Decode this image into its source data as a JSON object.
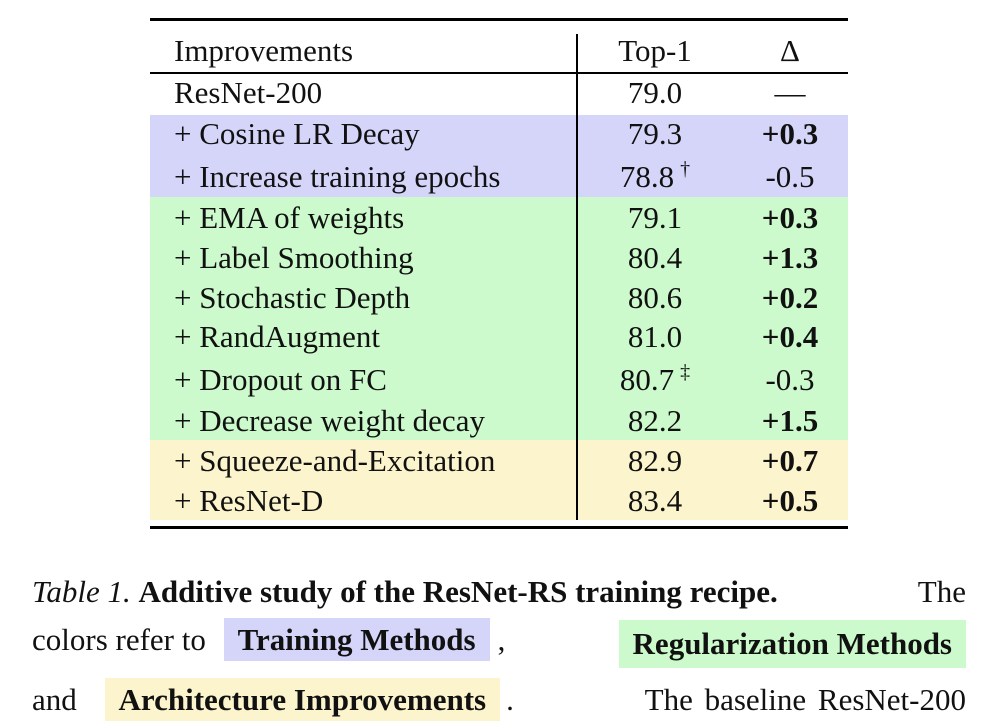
{
  "table": {
    "headers": [
      "Improvements",
      "Top-1",
      "Δ"
    ],
    "baseline": {
      "name": "ResNet-200",
      "top1": "79.0",
      "delta": "—"
    },
    "rows": [
      {
        "name": "+ Cosine LR Decay",
        "top1": "79.3",
        "mark": "",
        "delta": "+0.3",
        "bold": true,
        "group": "training"
      },
      {
        "name": "+ Increase training epochs",
        "top1": "78.8",
        "mark": "†",
        "delta": "-0.5",
        "bold": false,
        "group": "training"
      },
      {
        "name": "+ EMA of weights",
        "top1": "79.1",
        "mark": "",
        "delta": "+0.3",
        "bold": true,
        "group": "regularization"
      },
      {
        "name": "+ Label Smoothing",
        "top1": "80.4",
        "mark": "",
        "delta": "+1.3",
        "bold": true,
        "group": "regularization"
      },
      {
        "name": "+ Stochastic Depth",
        "top1": "80.6",
        "mark": "",
        "delta": "+0.2",
        "bold": true,
        "group": "regularization"
      },
      {
        "name": "+ RandAugment",
        "top1": "81.0",
        "mark": "",
        "delta": "+0.4",
        "bold": true,
        "group": "regularization"
      },
      {
        "name": "+ Dropout on FC",
        "top1": "80.7",
        "mark": "‡",
        "delta": "-0.3",
        "bold": false,
        "group": "regularization"
      },
      {
        "name": "+ Decrease weight decay",
        "top1": "82.2",
        "mark": "",
        "delta": "+1.5",
        "bold": true,
        "group": "regularization"
      },
      {
        "name": "+ Squeeze-and-Excitation",
        "top1": "82.9",
        "mark": "",
        "delta": "+0.7",
        "bold": true,
        "group": "architecture"
      },
      {
        "name": "+ ResNet-D",
        "top1": "83.4",
        "mark": "",
        "delta": "+0.5",
        "bold": true,
        "group": "architecture"
      }
    ]
  },
  "colors": {
    "training": "#d5d5fa",
    "regularization": "#ccfacc",
    "architecture": "#fcf4cc"
  },
  "caption": {
    "label": "Table 1.",
    "title": "Additive study of the ResNet-RS training recipe.",
    "text_the": "The",
    "text_colors_refer": "colors refer to",
    "chip_training": "Training Methods",
    "comma": ",",
    "chip_regularization": "Regularization Methods",
    "text_and": "and",
    "chip_architecture": "Architecture Improvements",
    "period": ".",
    "text_tail": "The baseline ResNet-200"
  }
}
